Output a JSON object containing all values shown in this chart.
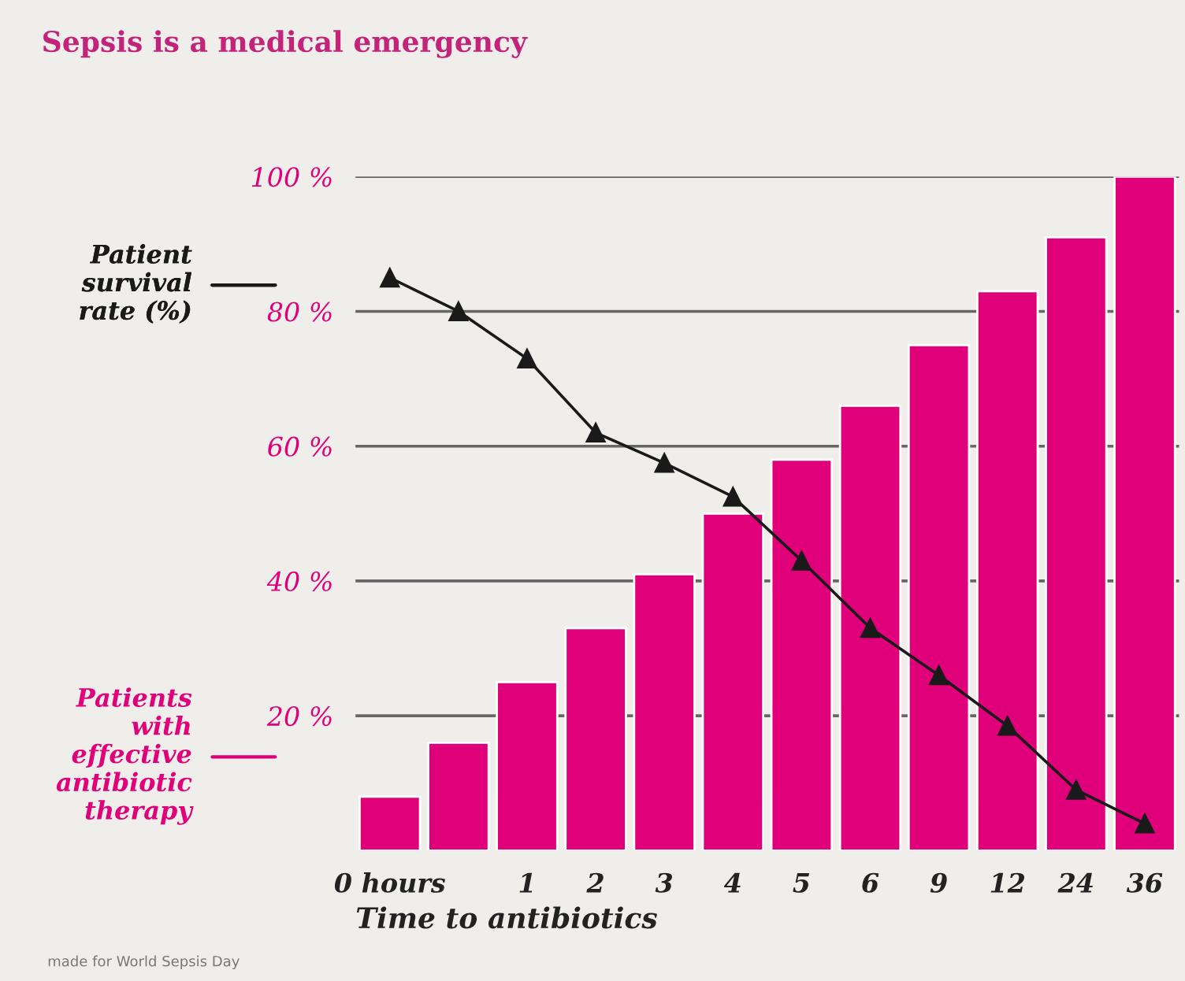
{
  "chart_data": {
    "type": "bar",
    "title": "Sepsis is a medical emergency",
    "xlabel": "Time to antibiotics",
    "categories": [
      "0 hours",
      null,
      "1",
      "2",
      "3",
      "4",
      "5",
      "6",
      "9",
      "12",
      "24",
      "36"
    ],
    "series": [
      {
        "name": "Patients\nwith\neffective\nantibiotic\ntherapy",
        "color": "#e0007a",
        "values": [
          8,
          16,
          25,
          33,
          41,
          50,
          58,
          66,
          75,
          83,
          91,
          100
        ]
      },
      {
        "name": "Patient\nsurvival\nrate (%)",
        "type": "line",
        "color": "#1a1a1a",
        "marker": "triangle",
        "line_style": "solid",
        "values": [
          85,
          80,
          73,
          62,
          57.5,
          52.5,
          43,
          33,
          26,
          18.5,
          9,
          4
        ]
      }
    ],
    "ylim": [
      0,
      100
    ],
    "yticks": [
      {
        "value": 20,
        "label": "20 %"
      },
      {
        "value": 40,
        "label": "40 %"
      },
      {
        "value": 60,
        "label": "60 %"
      },
      {
        "value": 80,
        "label": "80 %"
      },
      {
        "value": 100,
        "label": "100 %"
      }
    ],
    "grid": "y",
    "legend": "left",
    "annotations": [
      "made for World Sepsis Day"
    ]
  }
}
